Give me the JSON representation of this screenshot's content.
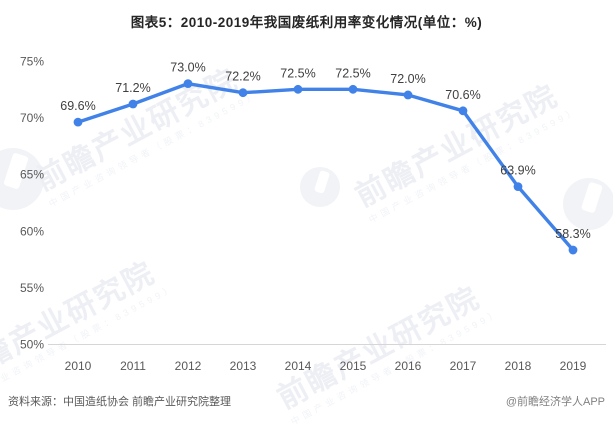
{
  "title": "图表5：2010-2019年我国废纸利用率变化情况(单位：%)",
  "chart_data": {
    "type": "line",
    "title": "图表5：2010-2019年我国废纸利用率变化情况(单位：%)",
    "categories": [
      "2010",
      "2011",
      "2012",
      "2013",
      "2014",
      "2015",
      "2016",
      "2017",
      "2018",
      "2019"
    ],
    "values": [
      69.6,
      71.2,
      73.0,
      72.2,
      72.5,
      72.5,
      72.0,
      70.6,
      63.9,
      58.3
    ],
    "labels": [
      "69.6%",
      "71.2%",
      "73.0%",
      "72.2%",
      "72.5%",
      "72.5%",
      "72.0%",
      "70.6%",
      "63.9%",
      "58.3%"
    ],
    "ylim": [
      50,
      75
    ],
    "yticks": [
      {
        "value": 75,
        "label": "75%"
      },
      {
        "value": 70,
        "label": "70%"
      },
      {
        "value": 65,
        "label": "65%"
      },
      {
        "value": 60,
        "label": "60%"
      },
      {
        "value": 55,
        "label": "55%"
      },
      {
        "value": 50,
        "label": "50%"
      }
    ],
    "xlabel": "",
    "ylabel": "",
    "grid": false,
    "legend": "none",
    "line_color": "#4182e8",
    "axis_line_color": "#d6d6d6"
  },
  "watermark": {
    "text": "前瞻产业研究院",
    "subtext": "中国产业咨询领导者（股票：839599）"
  },
  "footer": {
    "source": "资料来源：中国造纸协会 前瞻产业研究院整理",
    "credit": "@前瞻经济学人APP"
  }
}
